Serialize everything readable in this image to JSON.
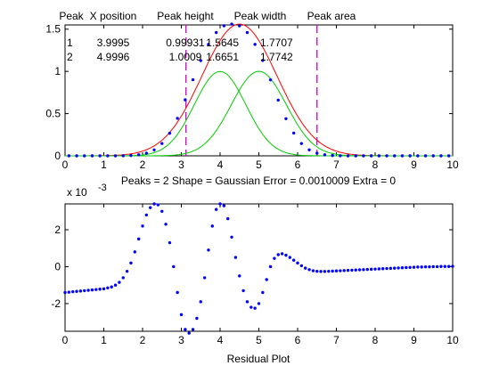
{
  "chart_data": [
    {
      "type": "line",
      "plot": "fit-plot",
      "xlim": [
        0,
        10
      ],
      "ylim": [
        0,
        1.55
      ],
      "x_ticks": [
        0,
        1,
        2,
        3,
        4,
        5,
        6,
        7,
        8,
        9,
        10
      ],
      "y_ticks": [
        0,
        0.5,
        1,
        1.5
      ],
      "grid": false,
      "header_labels": [
        "Peak",
        "X position",
        "Peak height",
        "Peak width",
        "Peak area"
      ],
      "table_rows": [
        [
          "1",
          "3.9995",
          "0.99931",
          "1.5645",
          "1.7707"
        ],
        [
          "2",
          "4.9996",
          "1.0009",
          "1.6651",
          "1.7742"
        ]
      ],
      "series": [
        {
          "kind": "markers",
          "color": "#0000ff",
          "x": [
            0.1,
            0.3,
            0.5,
            0.7,
            0.9,
            1.1,
            1.3,
            1.5,
            1.7,
            1.9,
            2.1,
            2.3,
            2.5,
            2.7,
            2.9,
            3.1,
            3.3,
            3.5,
            3.7,
            3.9,
            4.1,
            4.3,
            4.5,
            4.7,
            4.9,
            5.1,
            5.3,
            5.5,
            5.7,
            5.9,
            6.1,
            6.3,
            6.5,
            6.7,
            6.9,
            7.1,
            7.3,
            7.5,
            7.7,
            7.9,
            8.1,
            8.3,
            8.5,
            8.7,
            8.9,
            9.1,
            9.3,
            9.5,
            9.7,
            9.9
          ],
          "y": [
            0,
            0,
            0,
            0,
            0,
            0,
            0,
            0.001,
            0.004,
            0.012,
            0.031,
            0.071,
            0.146,
            0.268,
            0.444,
            0.663,
            0.901,
            1.128,
            1.32,
            1.46,
            1.54,
            1.56,
            1.54,
            1.46,
            1.32,
            1.13,
            0.9,
            0.66,
            0.44,
            0.27,
            0.146,
            0.071,
            0.031,
            0.012,
            0.004,
            0.001,
            0,
            0,
            0,
            0,
            0,
            0,
            0,
            0,
            0,
            0,
            0,
            0,
            0,
            0
          ]
        },
        {
          "kind": "line",
          "color": "#ff0000",
          "center": 4.5,
          "height": 1.56,
          "width": 2.28
        },
        {
          "kind": "line",
          "color": "#00cc00",
          "center": 3.9995,
          "height": 0.99931,
          "width": 1.5645
        },
        {
          "kind": "line",
          "color": "#00cc00",
          "center": 4.9996,
          "height": 1.0009,
          "width": 1.6651
        }
      ],
      "vlines": [
        {
          "x": 3.12,
          "color": "#cc00cc",
          "style": "dashed"
        },
        {
          "x": 6.5,
          "color": "#cc00cc",
          "style": "dashed"
        }
      ],
      "annotation": "Peaks = 2     Shape = Gaussian     Error = 0.0010009     Extra = 0"
    },
    {
      "type": "scatter",
      "plot": "residual-plot",
      "xlabel": "Residual Plot",
      "ylabel": "",
      "exponent_label": "x 10",
      "exponent_value": "-3",
      "xlim": [
        0,
        10
      ],
      "ylim": [
        -3.5,
        3.4
      ],
      "x_ticks": [
        0,
        1,
        2,
        3,
        4,
        5,
        6,
        7,
        8,
        9,
        10
      ],
      "y_ticks": [
        -2,
        0,
        2
      ],
      "grid": false,
      "series": [
        {
          "color": "#0000ff",
          "x": [
            0,
            0.1,
            0.2,
            0.3,
            0.4,
            0.5,
            0.6,
            0.7,
            0.8,
            0.9,
            1.0,
            1.1,
            1.2,
            1.3,
            1.4,
            1.5,
            1.6,
            1.7,
            1.8,
            1.9,
            2.0,
            2.1,
            2.2,
            2.3,
            2.4,
            2.5,
            2.6,
            2.7,
            2.8,
            2.9,
            3.0,
            3.1,
            3.2,
            3.3,
            3.4,
            3.5,
            3.6,
            3.7,
            3.8,
            3.9,
            4.0,
            4.1,
            4.2,
            4.3,
            4.4,
            4.5,
            4.6,
            4.7,
            4.8,
            4.9,
            5.0,
            5.1,
            5.2,
            5.3,
            5.4,
            5.5,
            5.6,
            5.7,
            5.8,
            5.9,
            6.0,
            6.1,
            6.2,
            6.3,
            6.4,
            6.5,
            6.6,
            6.7,
            6.8,
            6.9,
            7.0,
            7.1,
            7.2,
            7.3,
            7.4,
            7.5,
            7.6,
            7.7,
            7.8,
            7.9,
            8.0,
            8.1,
            8.2,
            8.3,
            8.4,
            8.5,
            8.6,
            8.7,
            8.8,
            8.9,
            9.0,
            9.1,
            9.2,
            9.3,
            9.4,
            9.5,
            9.6,
            9.7,
            9.8,
            9.9,
            10.0
          ],
          "y": [
            -1.4,
            -1.38,
            -1.36,
            -1.34,
            -1.32,
            -1.3,
            -1.28,
            -1.26,
            -1.24,
            -1.22,
            -1.2,
            -1.15,
            -1.1,
            -1.0,
            -0.85,
            -0.6,
            -0.25,
            0.2,
            0.8,
            1.5,
            2.2,
            2.8,
            3.2,
            3.4,
            3.35,
            3.0,
            2.3,
            1.3,
            0.0,
            -1.4,
            -2.6,
            -3.4,
            -3.6,
            -3.4,
            -2.8,
            -1.9,
            -0.6,
            0.9,
            2.2,
            3.1,
            3.4,
            3.3,
            2.6,
            1.6,
            0.5,
            -0.5,
            -1.3,
            -1.9,
            -2.2,
            -2.25,
            -2.0,
            -1.4,
            -0.7,
            0.0,
            0.45,
            0.65,
            0.7,
            0.62,
            0.5,
            0.35,
            0.2,
            0.05,
            -0.08,
            -0.16,
            -0.22,
            -0.25,
            -0.26,
            -0.26,
            -0.25,
            -0.24,
            -0.23,
            -0.22,
            -0.21,
            -0.2,
            -0.19,
            -0.18,
            -0.17,
            -0.16,
            -0.15,
            -0.14,
            -0.13,
            -0.12,
            -0.11,
            -0.1,
            -0.09,
            -0.08,
            -0.07,
            -0.06,
            -0.05,
            -0.04,
            -0.03,
            -0.02,
            -0.02,
            -0.01,
            -0.01,
            0.0,
            0.0,
            0.01,
            0.01,
            0.01,
            0.02
          ]
        }
      ]
    }
  ]
}
